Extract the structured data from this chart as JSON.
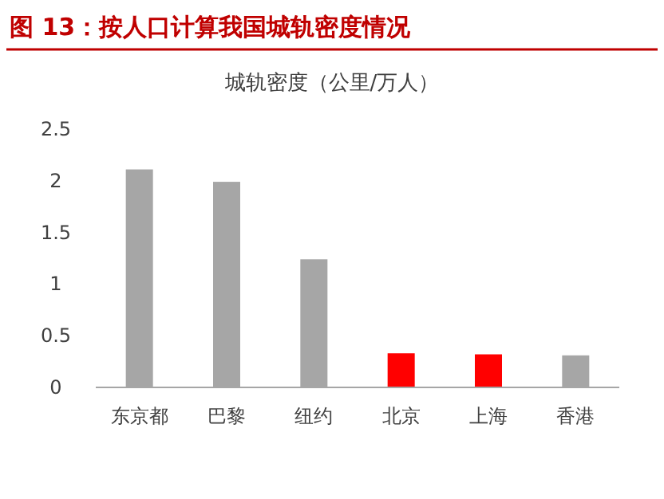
{
  "chart_data": {
    "type": "bar",
    "title": "图 13：按人口计算我国城轨密度情况",
    "subtitle": "城轨密度（公里/万人）",
    "categories": [
      "东京都",
      "巴黎",
      "纽约",
      "北京",
      "上海",
      "香港"
    ],
    "values": [
      2.11,
      1.99,
      1.24,
      0.33,
      0.32,
      0.31
    ],
    "colors": [
      "#a6a6a6",
      "#a6a6a6",
      "#a6a6a6",
      "#ff0000",
      "#ff0000",
      "#a6a6a6"
    ],
    "ylim": [
      0,
      2.5
    ],
    "yticks": [
      0,
      0.5,
      1,
      1.5,
      2,
      2.5
    ],
    "grid": false
  }
}
